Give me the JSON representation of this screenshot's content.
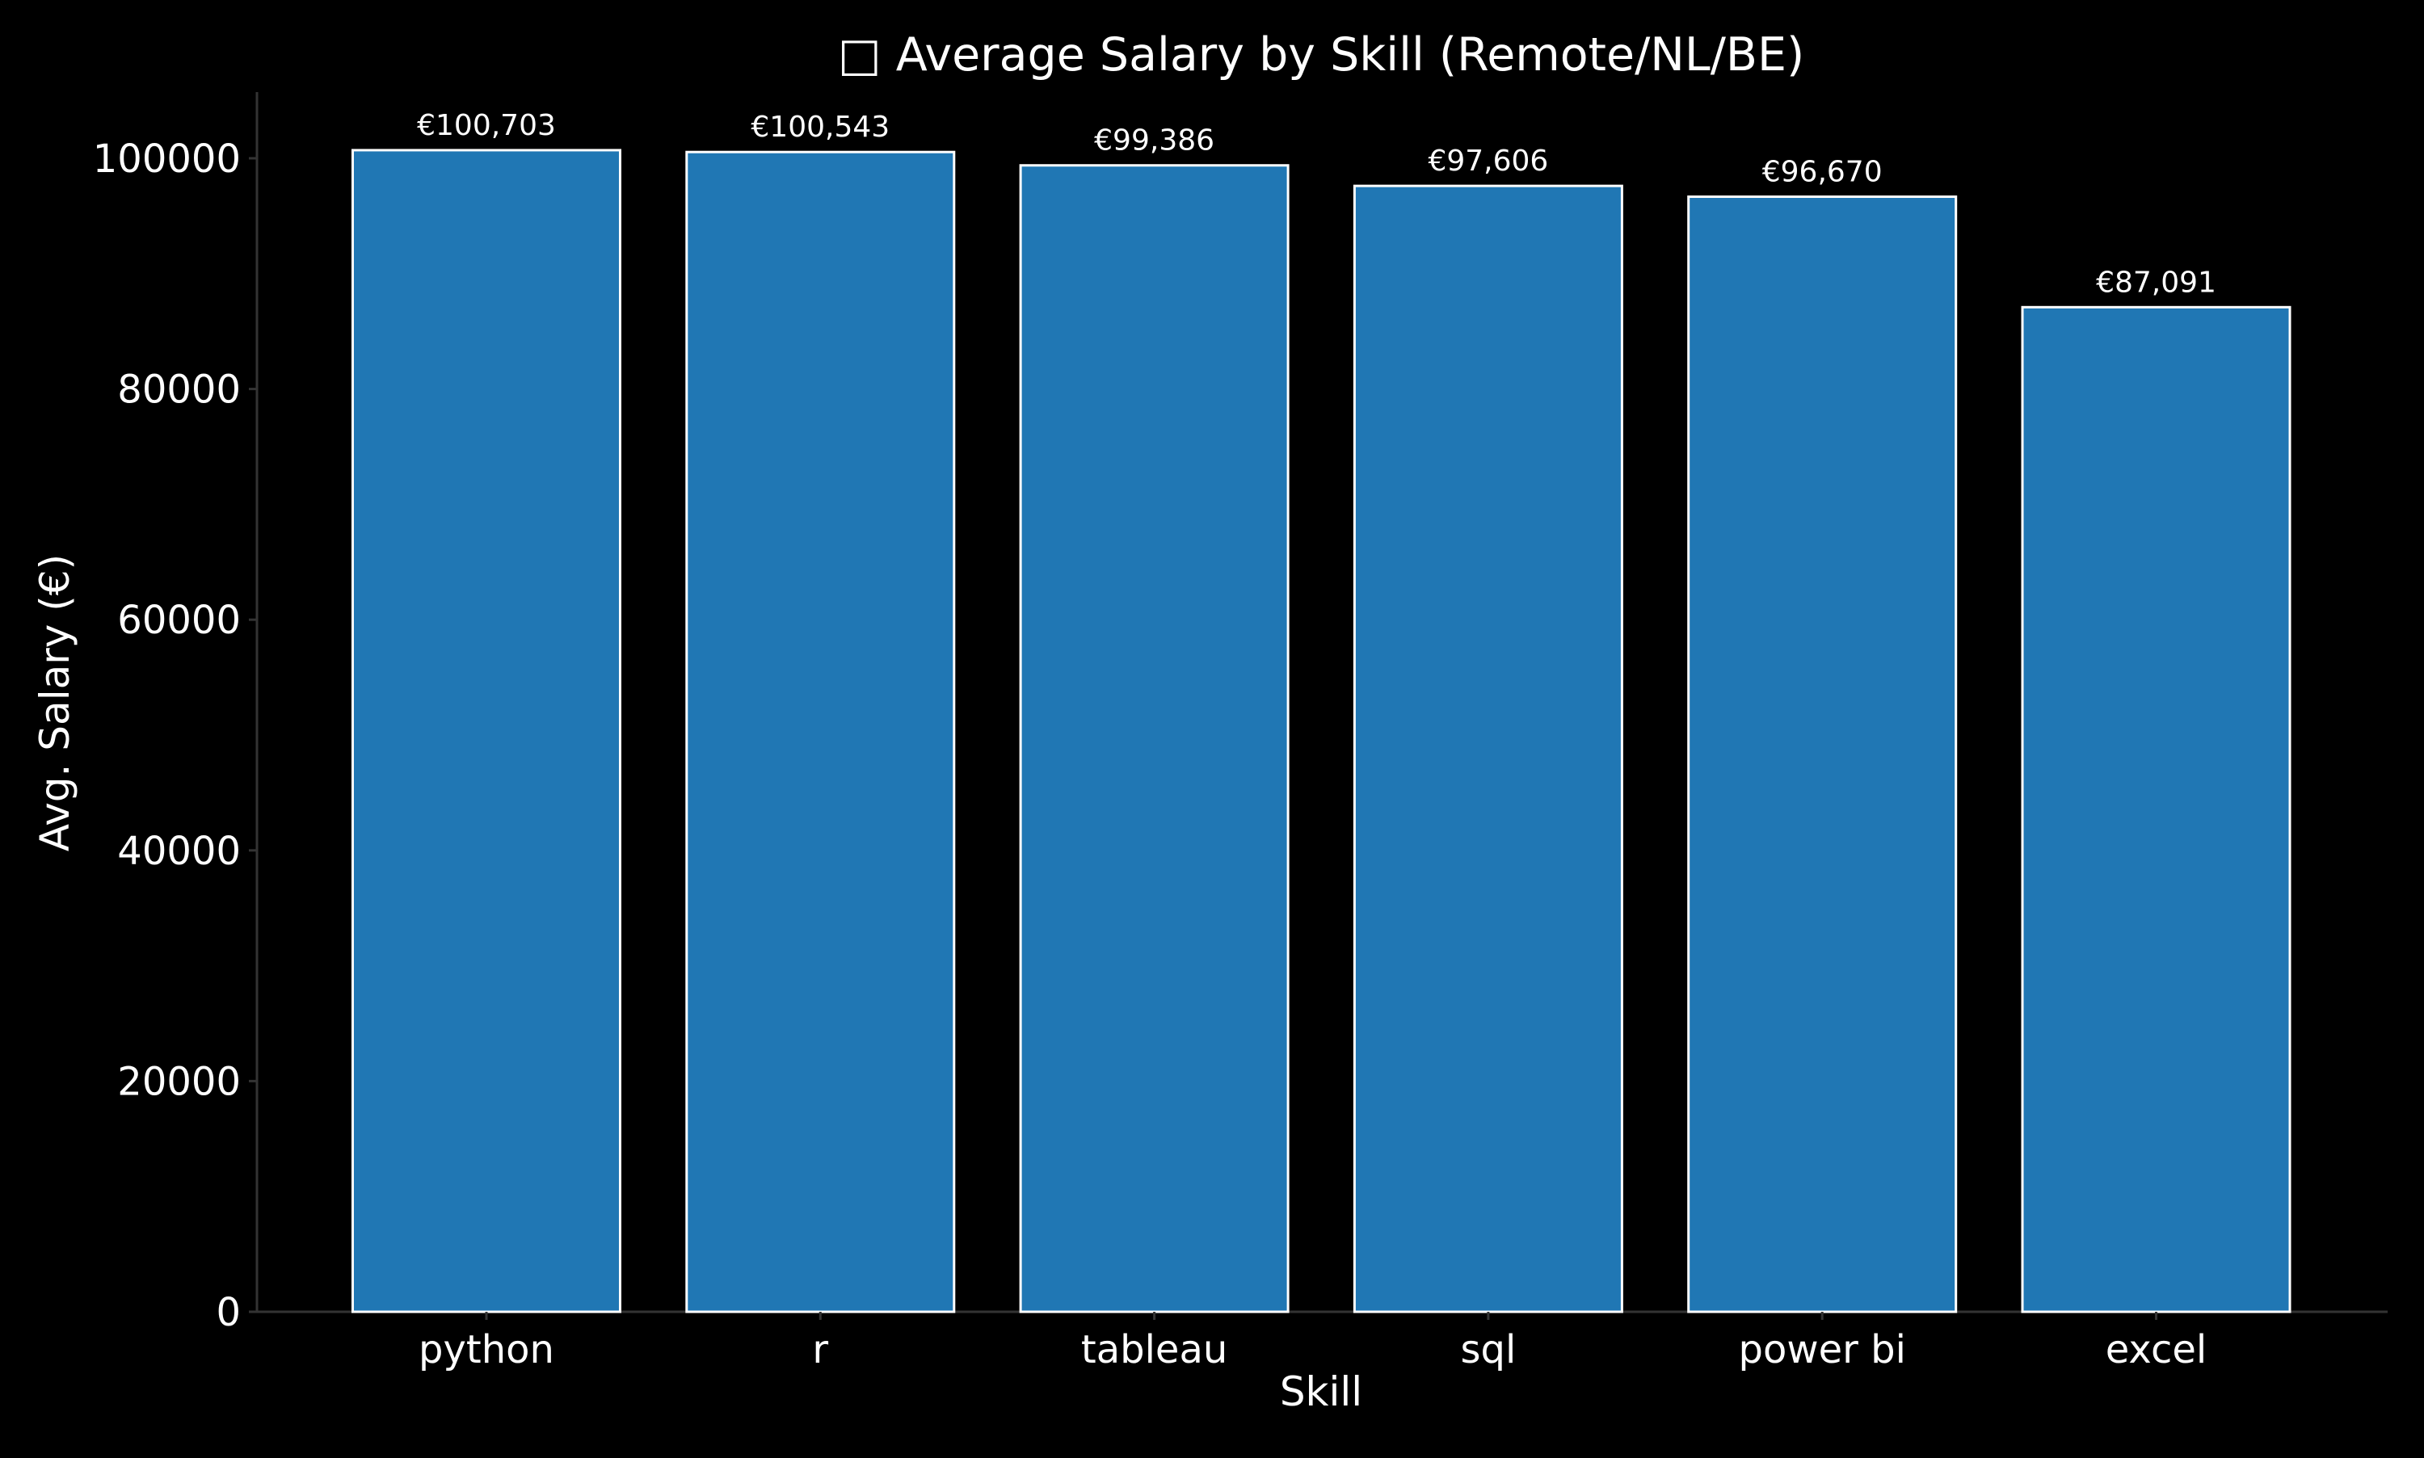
{
  "chart_data": {
    "type": "bar",
    "title": "□ Average Salary by Skill (Remote/NL/BE)",
    "xlabel": "Skill",
    "ylabel": "Avg. Salary (€)",
    "categories": [
      "python",
      "r",
      "tableau",
      "sql",
      "power bi",
      "excel"
    ],
    "values": [
      100703,
      100543,
      99386,
      97606,
      96670,
      87091
    ],
    "value_labels": [
      "€100,703",
      "€100,543",
      "€99,386",
      "€97,606",
      "€96,670",
      "€87,091"
    ],
    "ylim": [
      0,
      105739
    ],
    "yticks": [
      0,
      20000,
      40000,
      60000,
      80000,
      100000
    ],
    "ytick_labels": [
      "0",
      "20000",
      "40000",
      "60000",
      "80000",
      "100000"
    ],
    "grid": false,
    "legend": "none",
    "colors": {
      "background": "#000000",
      "bar_fill": "#2077b4",
      "bar_edge": "#ffffff",
      "text": "#ffffff",
      "axis": "#333333"
    }
  }
}
